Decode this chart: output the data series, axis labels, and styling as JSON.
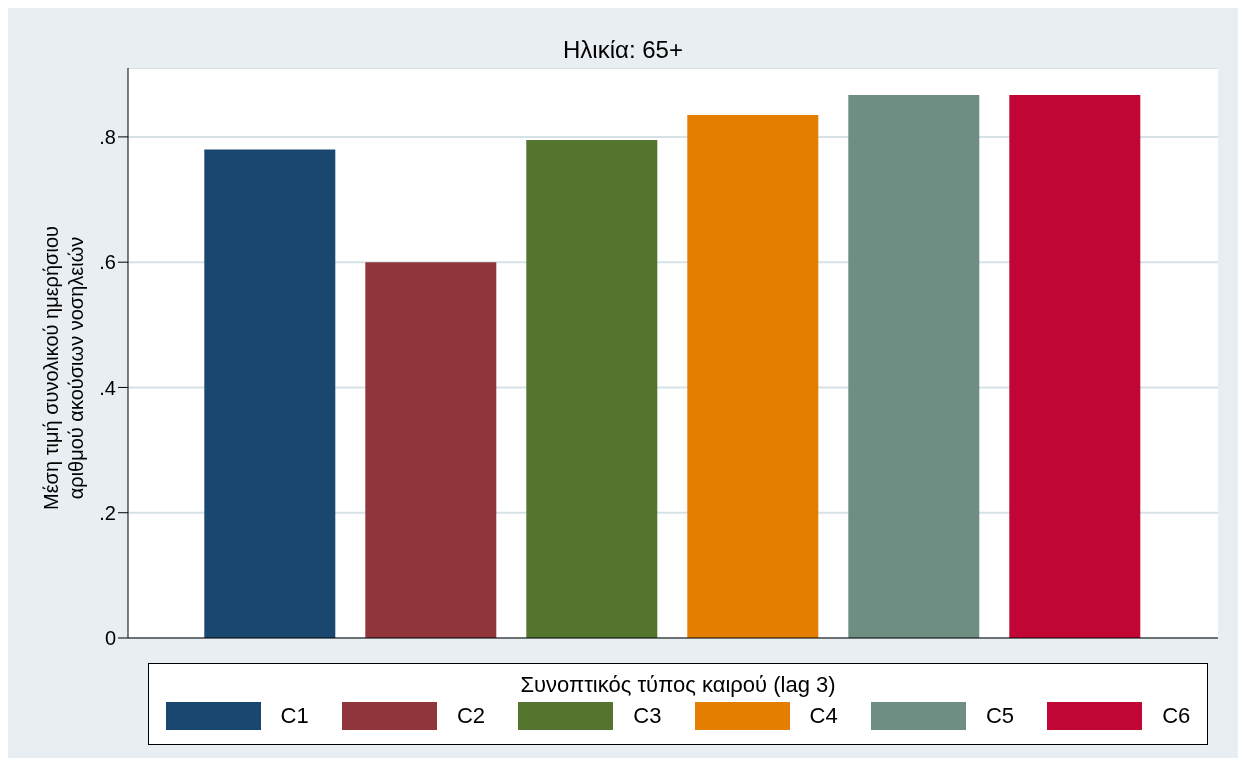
{
  "chart_data": {
    "type": "bar",
    "title": "Ηλικία: 65+",
    "ylabel": "Μέση τιμή συνολικού ημερήσιου αριθμού ακούσιων νοσηλειών",
    "legend_title": "Συνοπτικός τύπος καιρού (lag 3)",
    "categories": [
      null
    ],
    "series": [
      {
        "name": "C1",
        "color": "#1a476f",
        "values": [
          0.78
        ]
      },
      {
        "name": "C2",
        "color": "#90353b",
        "values": [
          0.6
        ]
      },
      {
        "name": "C3",
        "color": "#55752f",
        "values": [
          0.795
        ]
      },
      {
        "name": "C4",
        "color": "#e37e00",
        "values": [
          0.835
        ]
      },
      {
        "name": "C5",
        "color": "#6e8e84",
        "values": [
          0.867
        ]
      },
      {
        "name": "C6",
        "color": "#c10534",
        "values": [
          0.867
        ]
      }
    ],
    "ylim": [
      0,
      0.91
    ],
    "yticks": [
      0,
      {
        "value": 0.2,
        "label": ".2"
      },
      {
        "value": 0.4,
        "label": ".4"
      },
      {
        "value": 0.6,
        "label": ".6"
      },
      {
        "value": 0.8,
        "label": ".8"
      }
    ],
    "grid": "y",
    "legend": "bottom"
  }
}
